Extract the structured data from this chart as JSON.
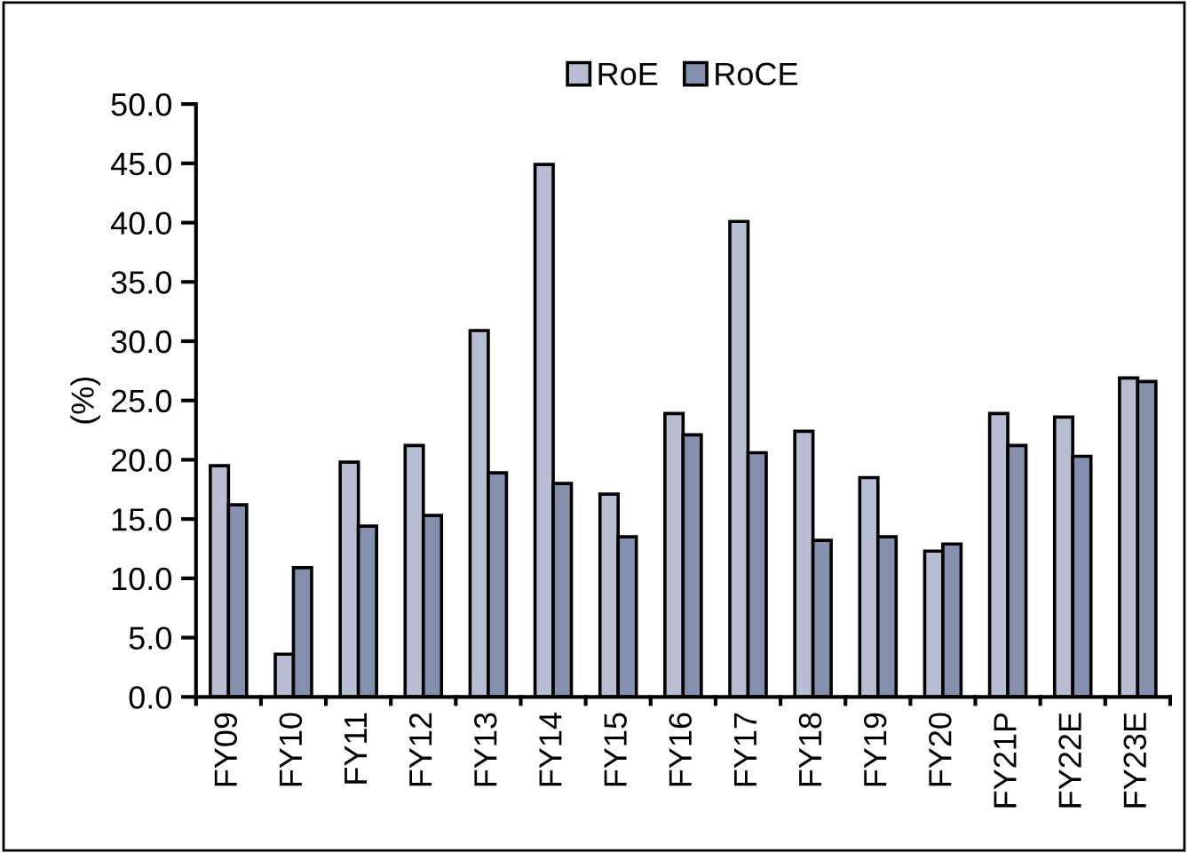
{
  "chart_data": {
    "type": "bar",
    "ylabel": "(%)",
    "categories": [
      "FY09",
      "FY10",
      "FY11",
      "FY12",
      "FY13",
      "FY14",
      "FY15",
      "FY16",
      "FY17",
      "FY18",
      "FY19",
      "FY20",
      "FY21P",
      "FY22E",
      "FY23E"
    ],
    "series": [
      {
        "name": "RoE",
        "color": "#b8bed2",
        "values": [
          19.5,
          3.6,
          19.8,
          21.2,
          30.9,
          44.9,
          17.1,
          23.9,
          40.1,
          22.4,
          18.5,
          12.3,
          23.9,
          23.6,
          26.9
        ]
      },
      {
        "name": "RoCE",
        "color": "#8490ae",
        "values": [
          16.2,
          10.9,
          14.4,
          15.3,
          18.9,
          18.0,
          13.5,
          22.1,
          20.6,
          13.2,
          13.5,
          12.9,
          21.2,
          20.3,
          26.6
        ]
      }
    ],
    "ylim": [
      0,
      50
    ],
    "yticks": [
      {
        "value": 0,
        "label": "0.0"
      },
      {
        "value": 5,
        "label": "5.0"
      },
      {
        "value": 10,
        "label": "10.0"
      },
      {
        "value": 15,
        "label": "15.0"
      },
      {
        "value": 20,
        "label": "20.0"
      },
      {
        "value": 25,
        "label": "25.0"
      },
      {
        "value": 30,
        "label": "30.0"
      },
      {
        "value": 35,
        "label": "35.0"
      },
      {
        "value": 40,
        "label": "40.0"
      },
      {
        "value": 45,
        "label": "45.0"
      },
      {
        "value": 50,
        "label": "50.0"
      }
    ],
    "grid": false,
    "legend": "top"
  }
}
